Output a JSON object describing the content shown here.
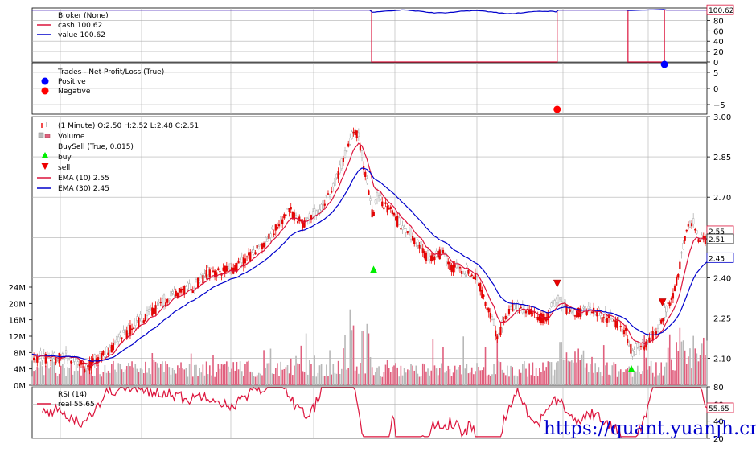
{
  "watermark": "https://quant.yuanjh.cn",
  "chart_data": [
    {
      "type": "line",
      "panel": "broker",
      "legend": [
        {
          "label": "Broker (None)",
          "color": ""
        },
        {
          "label": "cash 100.62",
          "color": "#dc143c"
        },
        {
          "label": "value 100.62",
          "color": "#0000cc"
        }
      ],
      "y_ticks": [
        "100",
        "80",
        "60",
        "40",
        "20",
        "0"
      ],
      "ylim": [
        0,
        104
      ],
      "last_value_tag": "100.62",
      "cash_in_market_periods": [
        [
          0.503,
          0.778
        ],
        [
          0.883,
          0.937
        ]
      ],
      "value_trace_note": "value tracks ~98-103 while invested"
    },
    {
      "type": "scatter",
      "panel": "trades",
      "legend": [
        {
          "label": "Trades - Net Profit/Loss (True)",
          "color": ""
        },
        {
          "label": "Positive",
          "color": "#0000ff"
        },
        {
          "label": "Negative",
          "color": "#ff0000"
        }
      ],
      "y_ticks": [
        "5",
        "0",
        "−5"
      ],
      "ylim": [
        -8,
        8
      ],
      "points": [
        {
          "x": 0.778,
          "y": -6.5,
          "kind": "negative"
        },
        {
          "x": 0.937,
          "y": 7.5,
          "kind": "positive"
        }
      ]
    },
    {
      "type": "candlestick",
      "panel": "price",
      "legend": [
        {
          "label": "(1 Minute) O:2.50 H:2.52 L:2.48 C:2.51",
          "color": ""
        },
        {
          "label": "Volume",
          "color": ""
        },
        {
          "label": "BuySell (True, 0.015)",
          "color": ""
        },
        {
          "label": "buy",
          "color": "#00ee00"
        },
        {
          "label": "sell",
          "color": "#ee0000"
        },
        {
          "label": "EMA (10) 2.55",
          "color": "#dc143c"
        },
        {
          "label": "EMA (30) 2.45",
          "color": "#0000cc"
        }
      ],
      "y_ticks_right": [
        "3.00",
        "2.85",
        "2.70",
        "2.55",
        "2.40",
        "2.25",
        "2.10"
      ],
      "ylim": [
        2.0,
        3.0
      ],
      "y_ticks_left_volume": [
        "24M",
        "20M",
        "16M",
        "12M",
        "8M",
        "4M",
        "0M"
      ],
      "volume_lim": [
        0,
        24
      ],
      "price_path": [
        [
          0,
          2.1
        ],
        [
          0.05,
          2.11
        ],
        [
          0.08,
          2.07
        ],
        [
          0.11,
          2.12
        ],
        [
          0.14,
          2.2
        ],
        [
          0.17,
          2.26
        ],
        [
          0.21,
          2.34
        ],
        [
          0.24,
          2.37
        ],
        [
          0.26,
          2.42
        ],
        [
          0.3,
          2.44
        ],
        [
          0.33,
          2.5
        ],
        [
          0.36,
          2.58
        ],
        [
          0.38,
          2.66
        ],
        [
          0.4,
          2.6
        ],
        [
          0.43,
          2.66
        ],
        [
          0.45,
          2.76
        ],
        [
          0.47,
          2.9
        ],
        [
          0.48,
          2.96
        ],
        [
          0.49,
          2.84
        ],
        [
          0.495,
          2.78
        ],
        [
          0.5,
          2.7
        ],
        [
          0.505,
          2.62
        ],
        [
          0.51,
          2.7
        ],
        [
          0.53,
          2.66
        ],
        [
          0.55,
          2.58
        ],
        [
          0.57,
          2.53
        ],
        [
          0.59,
          2.47
        ],
        [
          0.61,
          2.5
        ],
        [
          0.62,
          2.44
        ],
        [
          0.64,
          2.43
        ],
        [
          0.66,
          2.4
        ],
        [
          0.67,
          2.32
        ],
        [
          0.69,
          2.18
        ],
        [
          0.71,
          2.3
        ],
        [
          0.73,
          2.28
        ],
        [
          0.76,
          2.25
        ],
        [
          0.78,
          2.32
        ],
        [
          0.8,
          2.27
        ],
        [
          0.83,
          2.28
        ],
        [
          0.86,
          2.24
        ],
        [
          0.88,
          2.2
        ],
        [
          0.89,
          2.12
        ],
        [
          0.91,
          2.16
        ],
        [
          0.93,
          2.22
        ],
        [
          0.95,
          2.34
        ],
        [
          0.96,
          2.45
        ],
        [
          0.97,
          2.58
        ],
        [
          0.98,
          2.6
        ],
        [
          0.99,
          2.54
        ],
        [
          1.0,
          2.55
        ]
      ],
      "ema10_last": "2.55",
      "ema30_last": "2.45",
      "close_last": "2.51",
      "buy_markers": [
        {
          "x": 0.506,
          "y": 2.43
        },
        {
          "x": 0.888,
          "y": 2.06
        }
      ],
      "sell_markers": [
        {
          "x": 0.778,
          "y": 2.38
        },
        {
          "x": 0.934,
          "y": 2.31
        }
      ],
      "last_value_tags": [
        "2.55",
        "2.51",
        "2.45"
      ]
    },
    {
      "type": "line",
      "panel": "rsi",
      "legend": [
        {
          "label": "RSI (14)",
          "color": ""
        },
        {
          "label": "real 55.65",
          "color": "#dc143c"
        }
      ],
      "y_ticks": [
        "80",
        "60",
        "40",
        "20"
      ],
      "ylim": [
        20,
        80
      ],
      "last_value_tag": "55.65"
    }
  ]
}
